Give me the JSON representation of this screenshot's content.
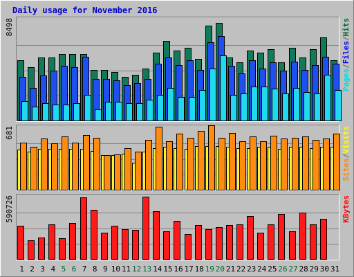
{
  "chart_data": {
    "type": "bar",
    "title": "Daily usage for November 2016",
    "days": [
      "1",
      "2",
      "3",
      "4",
      "5",
      "6",
      "7",
      "8",
      "9",
      "10",
      "11",
      "12",
      "13",
      "14",
      "15",
      "16",
      "17",
      "18",
      "19",
      "20",
      "21",
      "22",
      "23",
      "24",
      "25",
      "26",
      "27",
      "28",
      "29",
      "30",
      "31"
    ],
    "weekend_days": [
      "5",
      "6",
      "12",
      "13",
      "19",
      "20",
      "26",
      "27"
    ],
    "weekend_color": "#006633",
    "weekday_color": "#000000",
    "panels": [
      {
        "name": "hits-files-pages",
        "max_label": "8498",
        "ymax": 8498,
        "right_labels": [
          "Pages",
          "/",
          "Files",
          "/",
          "Hits"
        ],
        "right_label_colors": [
          "#00dddd",
          "#666666",
          "#0000ff",
          "#666666",
          "#006633"
        ],
        "series": [
          {
            "name": "Hits",
            "color": "#117a5a",
            "values": [
              5100,
              4500,
              5300,
              5300,
              5600,
              5600,
              5600,
              4300,
              4300,
              4100,
              3700,
              3900,
              4400,
              5700,
              6700,
              5900,
              6100,
              5200,
              8000,
              8200,
              5300,
              4900,
              5900,
              5700,
              6000,
              4900,
              6100,
              5300,
              6000,
              7000,
              5100
            ]
          },
          {
            "name": "Files",
            "color": "#1f4fef",
            "values": [
              3700,
              2800,
              3800,
              4200,
              4600,
              4500,
              5400,
              3500,
              3500,
              3400,
              3000,
              3200,
              3500,
              4800,
              5300,
              4700,
              5100,
              4300,
              6600,
              7100,
              4600,
              4000,
              5100,
              4400,
              4900,
              4200,
              5000,
              4300,
              4700,
              5400,
              4800
            ]
          },
          {
            "name": "Pages",
            "color": "#22d8f0",
            "values": [
              1700,
              1200,
              1500,
              1400,
              1400,
              1500,
              2200,
              1000,
              1600,
              1600,
              1500,
              1500,
              1800,
              2200,
              2800,
              2000,
              2000,
              2600,
              4400,
              5500,
              2200,
              2300,
              2900,
              2900,
              2700,
              2300,
              2800,
              2400,
              2300,
              3900,
              2600
            ]
          }
        ]
      },
      {
        "name": "sites-visits",
        "max_label": "681",
        "ymax": 681,
        "right_labels": [
          "Sites",
          "/",
          "Visits"
        ],
        "right_label_colors": [
          "#ff8800",
          "#666666",
          "#ffff00"
        ],
        "series": [
          {
            "name": "Visits",
            "color": "#fff22a",
            "values": [
              440,
              420,
              450,
              450,
              450,
              450,
              450,
              430,
              380,
              380,
              400,
              300,
              420,
              460,
              470,
              460,
              450,
              480,
              480,
              480,
              470,
              460,
              460,
              470,
              470,
              450,
              470,
              470,
              460,
              470,
              470
            ]
          },
          {
            "name": "Sites",
            "color": "#ff8c10",
            "values": [
              520,
              470,
              560,
              510,
              580,
              520,
              600,
              570,
              380,
              390,
              460,
              420,
              550,
              690,
              530,
              610,
              570,
              640,
              700,
              570,
              620,
              530,
              580,
              530,
              590,
              560,
              570,
              580,
              550,
              560,
              610
            ]
          }
        ]
      },
      {
        "name": "kbytes",
        "max_label": "590726",
        "ymax": 590726,
        "right_labels": [
          "KBytes"
        ],
        "right_label_colors": [
          "#ff0000"
        ],
        "series": [
          {
            "name": "KBytes",
            "color": "#ff1a1a",
            "values": [
              318000,
              184000,
              210000,
              328000,
              198000,
              345000,
              586000,
              467000,
              253000,
              315000,
              288000,
              280000,
              590726,
              456000,
              263000,
              366000,
              240000,
              325000,
              285000,
              303000,
              323000,
              328000,
              411000,
              253000,
              332000,
              431000,
              267000,
              443000,
              330000,
              385000,
              0
            ]
          }
        ]
      }
    ]
  }
}
